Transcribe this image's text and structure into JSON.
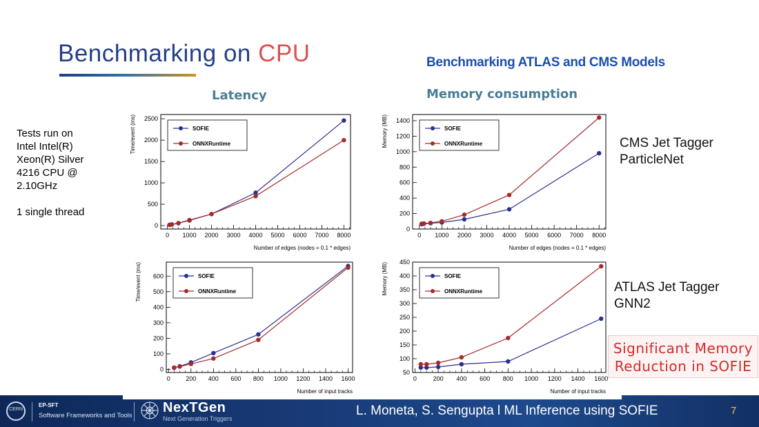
{
  "header": {
    "title_main": "Benchmarking on ",
    "title_accent": "CPU",
    "subtitle": "Benchmarking ATLAS and CMS Models",
    "latency_label": "Latency",
    "memory_label": "Memory consumption"
  },
  "notes": {
    "lines": [
      "Tests run on",
      "Intel Intel(R)",
      "Xeon(R) Silver",
      "4216 CPU @",
      "2.10GHz",
      "",
      "1 single thread"
    ]
  },
  "models": {
    "cms": [
      "CMS Jet Tagger",
      "ParticleNet"
    ],
    "atlas": [
      "ATLAS Jet Tagger",
      "GNN2"
    ]
  },
  "callout": [
    "Significant Memory",
    "Reduction in SOFIE"
  ],
  "colors": {
    "sofie": "#2a2f8f",
    "onnx": "#a52a2a",
    "title": "#243f85",
    "accent": "#d9534f"
  },
  "chart_data": [
    {
      "id": "cms-latency",
      "type": "line",
      "xlabel": "Number of edges (nodes = 0.1 * edges)",
      "ylabel": "Time/event (ms)",
      "xlim": [
        -300,
        8300
      ],
      "ylim": [
        -80,
        2600
      ],
      "xticks": [
        0,
        1000,
        2000,
        3000,
        4000,
        5000,
        6000,
        7000,
        8000
      ],
      "yticks": [
        0,
        500,
        1000,
        1500,
        2000,
        2500
      ],
      "legend_position": "top-left",
      "series": [
        {
          "name": "SOFIE",
          "x": [
            100,
            200,
            500,
            1000,
            2000,
            4000,
            8000
          ],
          "y": [
            15,
            25,
            55,
            120,
            270,
            770,
            2460
          ]
        },
        {
          "name": "ONNXRuntime",
          "x": [
            100,
            200,
            500,
            1000,
            2000,
            4000,
            8000
          ],
          "y": [
            20,
            30,
            60,
            130,
            270,
            690,
            2000
          ]
        }
      ]
    },
    {
      "id": "cms-memory",
      "type": "line",
      "xlabel": "Number of edges (nodes = 0.1 * edges)",
      "ylabel": "Memory (MB)",
      "xlim": [
        -300,
        8300
      ],
      "ylim": [
        0,
        1480
      ],
      "xticks": [
        0,
        1000,
        2000,
        3000,
        4000,
        5000,
        6000,
        7000,
        8000
      ],
      "yticks": [
        0,
        200,
        400,
        600,
        800,
        1000,
        1200,
        1400
      ],
      "legend_position": "top-left",
      "series": [
        {
          "name": "SOFIE",
          "x": [
            100,
            200,
            500,
            1000,
            2000,
            4000,
            8000
          ],
          "y": [
            62,
            68,
            75,
            85,
            125,
            255,
            980
          ]
        },
        {
          "name": "ONNXRuntime",
          "x": [
            100,
            200,
            500,
            1000,
            2000,
            4000,
            8000
          ],
          "y": [
            68,
            72,
            80,
            100,
            185,
            440,
            1440
          ]
        }
      ]
    },
    {
      "id": "atlas-latency",
      "type": "line",
      "xlabel": "Number of input tracks",
      "ylabel": "Time/event (ms)",
      "xlim": [
        -20,
        1640
      ],
      "ylim": [
        -20,
        690
      ],
      "xticks": [
        0,
        200,
        400,
        600,
        800,
        1000,
        1200,
        1400,
        1600
      ],
      "yticks": [
        0,
        100,
        200,
        300,
        400,
        500,
        600
      ],
      "legend_position": "top-left",
      "series": [
        {
          "name": "SOFIE",
          "x": [
            50,
            100,
            200,
            400,
            800,
            1600
          ],
          "y": [
            10,
            20,
            45,
            105,
            225,
            665
          ]
        },
        {
          "name": "ONNXRuntime",
          "x": [
            50,
            100,
            200,
            400,
            800,
            1600
          ],
          "y": [
            12,
            18,
            35,
            70,
            190,
            655
          ]
        }
      ]
    },
    {
      "id": "atlas-memory",
      "type": "line",
      "xlabel": "Number of input tracks",
      "ylabel": "Memory (MB)",
      "xlim": [
        -20,
        1640
      ],
      "ylim": [
        50,
        450
      ],
      "xticks": [
        0,
        200,
        400,
        600,
        800,
        1000,
        1200,
        1400,
        1600
      ],
      "yticks": [
        50,
        100,
        150,
        200,
        250,
        300,
        350,
        400,
        450
      ],
      "legend_position": "top-left",
      "series": [
        {
          "name": "SOFIE",
          "x": [
            50,
            100,
            200,
            400,
            800,
            1600
          ],
          "y": [
            68,
            68,
            70,
            80,
            90,
            245
          ]
        },
        {
          "name": "ONNXRuntime",
          "x": [
            50,
            100,
            200,
            400,
            800,
            1600
          ],
          "y": [
            80,
            80,
            85,
            105,
            175,
            435
          ]
        }
      ]
    }
  ],
  "footer": {
    "cern": "CERN",
    "dept": "EP-SFT",
    "dept_sub": "Software Frameworks and Tools",
    "nextgen": "NexTGen",
    "nextgen_sub": "Next Generation Triggers",
    "authors": "L. Moneta, S. Sengupta l   ML Inference using SOFIE",
    "page": "7"
  }
}
